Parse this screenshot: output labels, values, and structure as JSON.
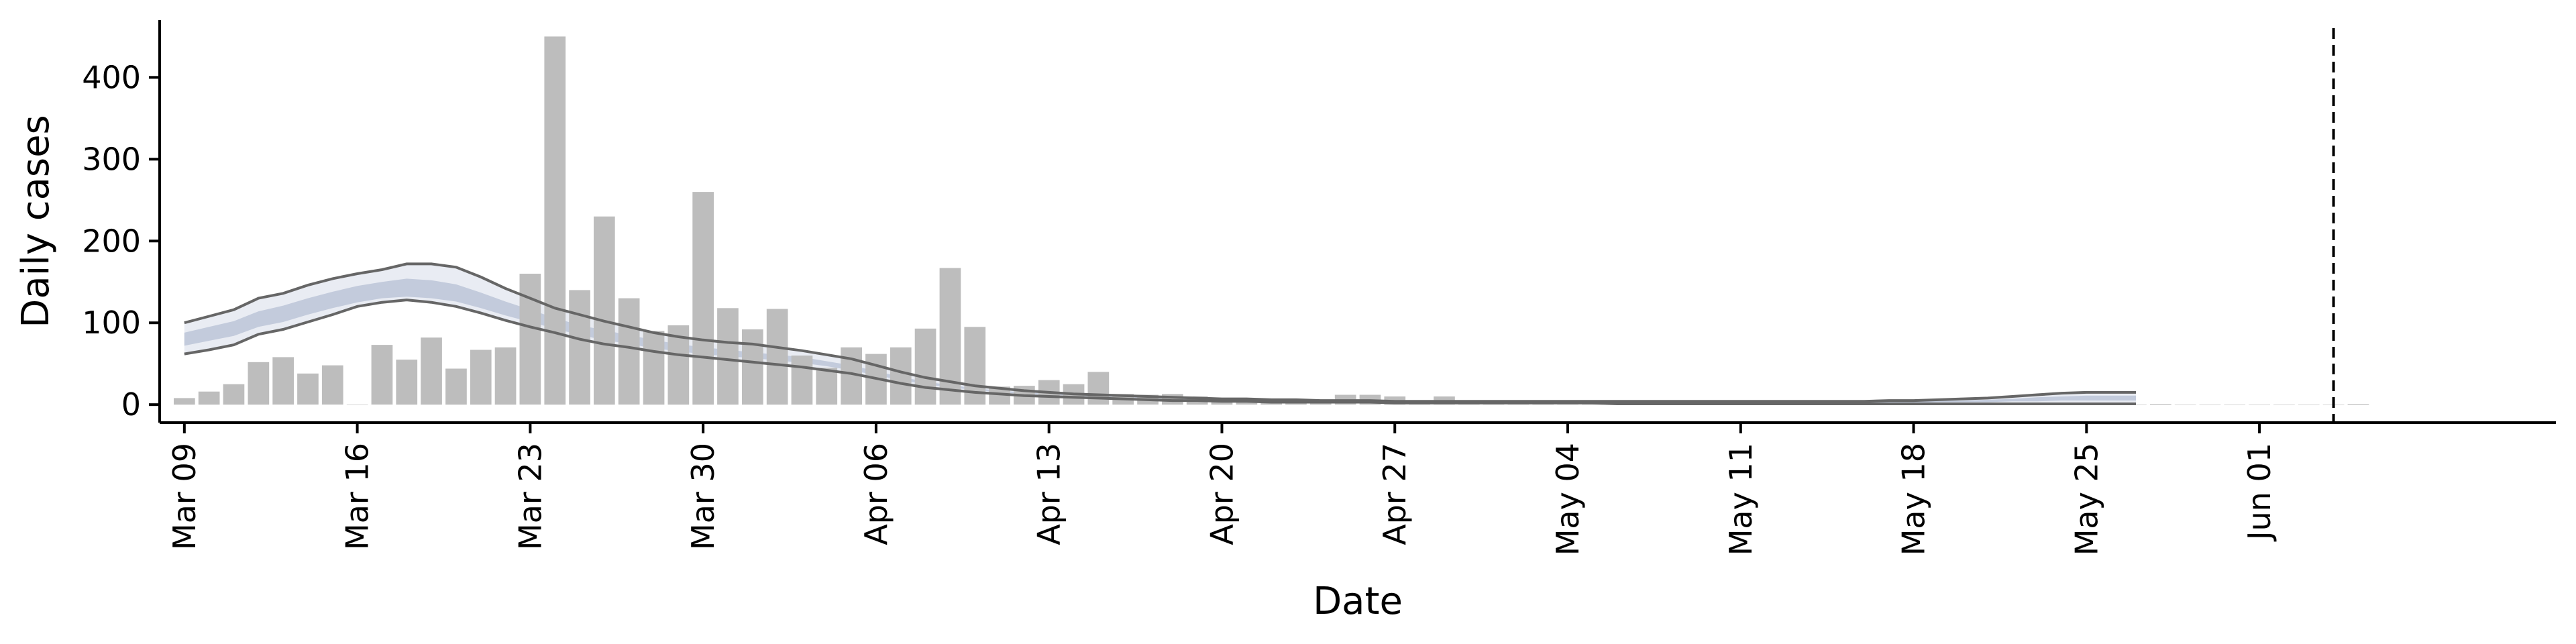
{
  "chart_data": {
    "type": "bar",
    "xlabel": "Date",
    "ylabel": "Daily cases",
    "ylim": [
      -22,
      470
    ],
    "yticks": [
      0,
      100,
      200,
      300,
      400
    ],
    "x_start": "2020-03-08",
    "x_end": "2020-06-13",
    "xticks": [
      {
        "date": "2020-03-09",
        "label": "Mar 09"
      },
      {
        "date": "2020-03-16",
        "label": "Mar 16"
      },
      {
        "date": "2020-03-23",
        "label": "Mar 23"
      },
      {
        "date": "2020-03-30",
        "label": "Mar 30"
      },
      {
        "date": "2020-04-06",
        "label": "Apr 06"
      },
      {
        "date": "2020-04-13",
        "label": "Apr 13"
      },
      {
        "date": "2020-04-20",
        "label": "Apr 20"
      },
      {
        "date": "2020-04-27",
        "label": "Apr 27"
      },
      {
        "date": "2020-05-04",
        "label": "May 04"
      },
      {
        "date": "2020-05-11",
        "label": "May 11"
      },
      {
        "date": "2020-05-18",
        "label": "May 18"
      },
      {
        "date": "2020-05-25",
        "label": "May 25"
      },
      {
        "date": "2020-06-01",
        "label": "Jun 01"
      }
    ],
    "bars": {
      "start_date": "2020-03-09",
      "values": [
        8,
        16,
        25,
        52,
        58,
        38,
        48,
        0,
        73,
        55,
        82,
        44,
        67,
        70,
        160,
        450,
        140,
        230,
        130,
        90,
        97,
        260,
        118,
        92,
        117,
        60,
        45,
        70,
        62,
        70,
        93,
        167,
        95,
        22,
        23,
        30,
        25,
        40,
        13,
        12,
        13,
        10,
        8,
        7,
        6,
        5,
        4,
        12,
        12,
        10,
        4,
        10,
        3,
        4,
        3,
        3,
        2,
        3,
        2,
        2,
        2,
        2,
        2,
        1,
        1,
        1,
        1,
        1,
        1,
        1,
        1,
        1,
        1,
        1,
        1,
        1,
        1,
        1,
        1,
        0,
        1,
        0,
        0,
        0,
        0,
        0,
        0,
        0,
        1
      ]
    },
    "band": {
      "start_date": "2020-03-09",
      "outer_upper": [
        100,
        108,
        116,
        130,
        136,
        146,
        154,
        160,
        165,
        172,
        172,
        168,
        156,
        142,
        130,
        118,
        110,
        102,
        95,
        88,
        83,
        79,
        76,
        74,
        70,
        66,
        61,
        56,
        48,
        40,
        33,
        28,
        23,
        20,
        17,
        15,
        13,
        12,
        11,
        10,
        9,
        8,
        7,
        7,
        6,
        6,
        5,
        5,
        5,
        4,
        4,
        4,
        4,
        4,
        4,
        4,
        4,
        4,
        4,
        4,
        4,
        4,
        4,
        4,
        4,
        4,
        4,
        4,
        4,
        5,
        5,
        6,
        7,
        8,
        10,
        12,
        14,
        15,
        15,
        15
      ],
      "inner_upper": [
        88,
        95,
        102,
        114,
        121,
        130,
        138,
        145,
        150,
        154,
        152,
        147,
        137,
        126,
        116,
        106,
        97,
        91,
        85,
        79,
        74,
        70,
        67,
        64,
        61,
        58,
        53,
        48,
        41,
        34,
        28,
        24,
        20,
        17,
        15,
        13,
        12,
        11,
        10,
        9,
        8,
        7,
        6,
        6,
        5,
        5,
        5,
        4,
        4,
        4,
        4,
        4,
        3,
        3,
        3,
        3,
        3,
        3,
        3,
        3,
        3,
        3,
        3,
        3,
        3,
        3,
        3,
        3,
        3,
        4,
        4,
        5,
        5,
        6,
        7,
        9,
        10,
        11,
        11,
        11
      ],
      "inner_lower": [
        72,
        78,
        84,
        95,
        101,
        110,
        118,
        125,
        130,
        132,
        130,
        126,
        118,
        109,
        101,
        93,
        85,
        79,
        74,
        69,
        65,
        62,
        59,
        57,
        54,
        51,
        47,
        42,
        36,
        30,
        25,
        21,
        18,
        15,
        13,
        12,
        11,
        10,
        9,
        8,
        7,
        6,
        5,
        5,
        4,
        4,
        4,
        3,
        3,
        3,
        3,
        3,
        2,
        2,
        2,
        2,
        2,
        2,
        2,
        2,
        2,
        2,
        2,
        2,
        2,
        2,
        2,
        2,
        2,
        2,
        2,
        3,
        3,
        3,
        4,
        4,
        5,
        5,
        5,
        5
      ],
      "outer_lower": [
        62,
        67,
        73,
        86,
        92,
        101,
        110,
        120,
        125,
        128,
        125,
        120,
        112,
        103,
        95,
        88,
        80,
        74,
        70,
        65,
        61,
        58,
        55,
        52,
        49,
        46,
        42,
        38,
        32,
        26,
        21,
        18,
        15,
        13,
        11,
        10,
        9,
        8,
        7,
        6,
        5,
        5,
        4,
        4,
        3,
        3,
        3,
        3,
        3,
        2,
        2,
        2,
        2,
        2,
        2,
        2,
        2,
        2,
        1,
        1,
        1,
        1,
        1,
        1,
        1,
        1,
        1,
        1,
        1,
        1,
        1,
        1,
        1,
        1,
        1,
        1,
        1,
        1,
        1,
        1
      ]
    },
    "vline_date": "2020-06-04",
    "colors": {
      "bar": "#bdbdbd",
      "band_outer": "#e9ecf3",
      "band_inner": "#c3cbdc",
      "band_line": "#666666",
      "axis": "#000000",
      "vline": "#000000"
    },
    "grid": false,
    "legend": "none"
  }
}
